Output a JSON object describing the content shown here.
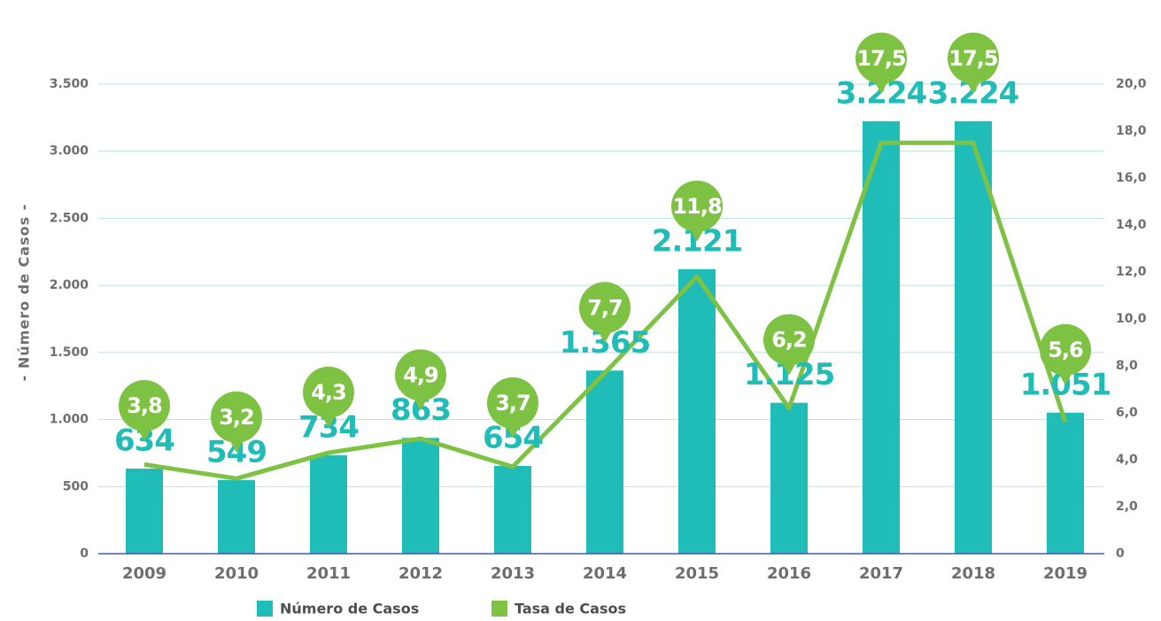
{
  "chart_data": {
    "type": "bar",
    "categories": [
      "2009",
      "2010",
      "2011",
      "2012",
      "2013",
      "2014",
      "2015",
      "2016",
      "2017",
      "2018",
      "2019"
    ],
    "y_label": "- Número de Casos -",
    "ylim": [
      0,
      3500
    ],
    "yticks": [
      0,
      500,
      {
        "value": 1000,
        "label": "1.000"
      },
      {
        "value": 1500,
        "label": "1.500"
      },
      {
        "value": 2000,
        "label": "2.000"
      },
      {
        "value": 2500,
        "label": "2.500"
      },
      {
        "value": 3000,
        "label": "3.000"
      },
      {
        "value": 3500,
        "label": "3.500"
      }
    ],
    "y2lim": [
      0,
      20
    ],
    "y2ticks": [
      0,
      {
        "value": 2,
        "label": "2,0"
      },
      {
        "value": 4,
        "label": "4,0"
      },
      {
        "value": 6,
        "label": "6,0"
      },
      {
        "value": 8,
        "label": "8,0"
      },
      {
        "value": 10,
        "label": "10,0"
      },
      {
        "value": 12,
        "label": "12,0"
      },
      {
        "value": 14,
        "label": "14,0"
      },
      {
        "value": 16,
        "label": "16,0"
      },
      {
        "value": 18,
        "label": "18,0"
      },
      {
        "value": 20,
        "label": "20,0"
      }
    ],
    "grid": true,
    "legend": "bottom",
    "series": [
      {
        "name": "Número de Casos",
        "type": "bar",
        "color": "#20bdb8",
        "values": [
          634,
          549,
          734,
          863,
          654,
          1365,
          2121,
          1125,
          3224,
          3224,
          1051
        ],
        "value_labels": [
          "634",
          "549",
          "734",
          "863",
          "654",
          "1.365",
          "2.121",
          "1.125",
          "3.224",
          "3.224",
          "1.051"
        ]
      },
      {
        "name": "Tasa de Casos",
        "type": "line",
        "axis": "y2",
        "color": "#7dc242",
        "values": [
          3.8,
          3.2,
          4.3,
          4.9,
          3.7,
          7.7,
          11.8,
          6.2,
          17.5,
          17.5,
          5.6
        ],
        "value_labels": [
          "3,8",
          "3,2",
          "4,3",
          "4,9",
          "3,7",
          "7,7",
          "11,8",
          "6,2",
          "17,5",
          "17,5",
          "5,6"
        ]
      }
    ]
  }
}
